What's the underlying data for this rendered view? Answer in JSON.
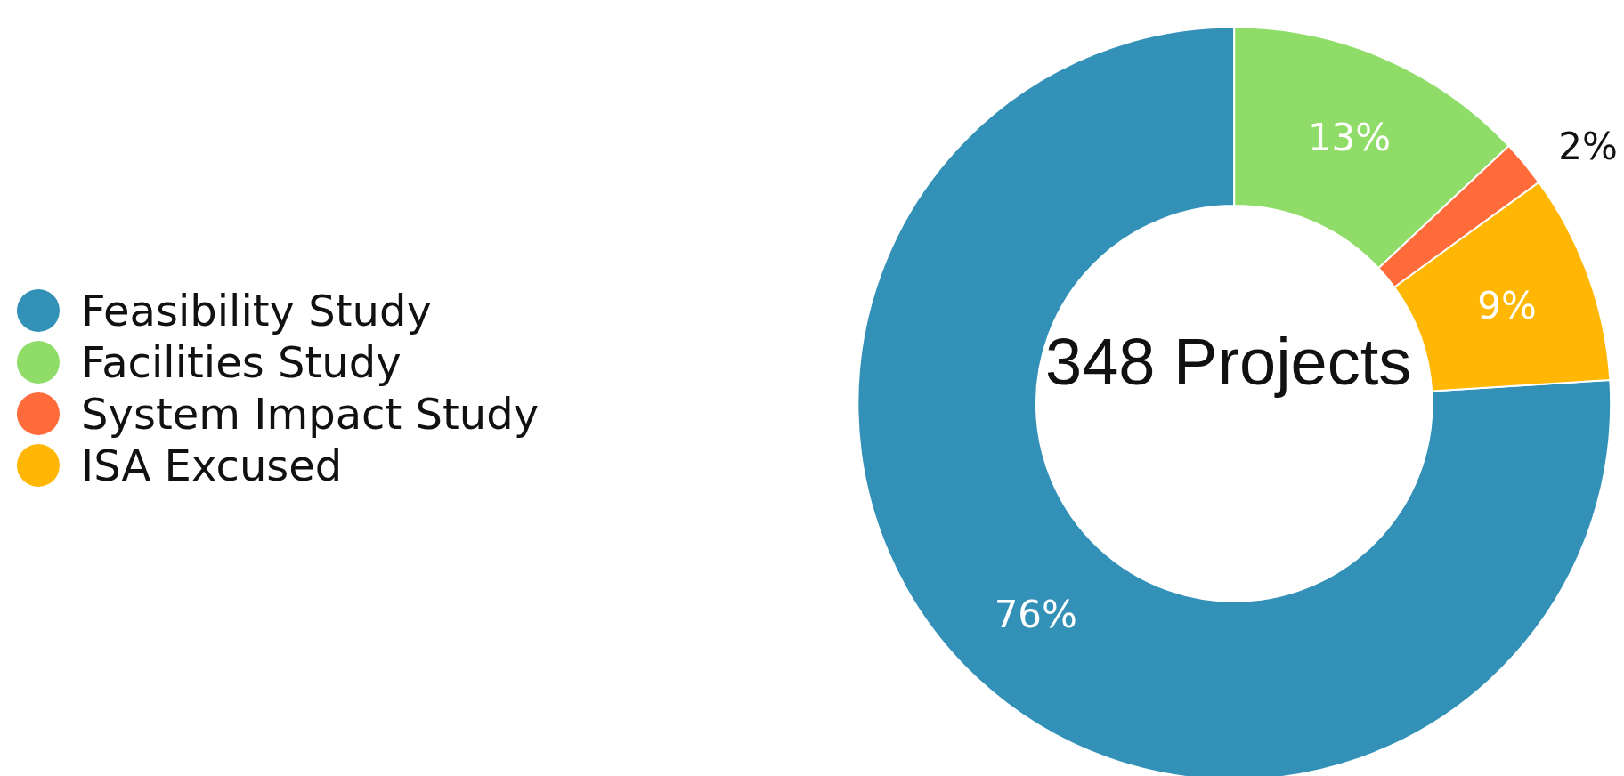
{
  "chart_data": {
    "type": "donut",
    "categories": [
      "Feasibility Study",
      "Facilities Study",
      "System Impact Study",
      "ISA Excused"
    ],
    "values": [
      76,
      13,
      2,
      9
    ],
    "colors": [
      "#3391b8",
      "#8fdd68",
      "#ff6b3a",
      "#ffb703"
    ],
    "value_labels": [
      "76%",
      "13%",
      "2%",
      "9%"
    ],
    "annotations": [
      "348 Projects"
    ],
    "legend": "left"
  }
}
